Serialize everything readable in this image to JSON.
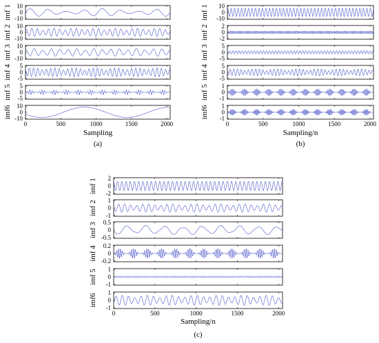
{
  "colors": {
    "signal": "#4a55c8",
    "frame": "#000000"
  },
  "chart_data": [
    {
      "type": "line",
      "panel_label": "(a)",
      "xlabel": "Sampling",
      "xlim": [
        0,
        2048
      ],
      "xticks": [
        0,
        500,
        1000,
        1500,
        2000
      ],
      "panels": [
        {
          "name": "imf 1",
          "ylim": [
            -10,
            10
          ],
          "yticks": [
            "10",
            "0",
            "-10"
          ],
          "wave": {
            "cycles": 8,
            "amp": 0.55,
            "mod": "slow"
          }
        },
        {
          "name": "imf 2",
          "ylim": [
            -10,
            10
          ],
          "yticks": [
            "10",
            "0",
            "-10"
          ],
          "wave": {
            "cycles": 26,
            "amp": 0.6,
            "mod": "beat"
          }
        },
        {
          "name": "imf 3",
          "ylim": [
            -10,
            10
          ],
          "yticks": [
            "10",
            "0",
            "-10"
          ],
          "wave": {
            "cycles": 17,
            "amp": 0.55,
            "mod": "beat"
          }
        },
        {
          "name": "imf 4",
          "ylim": [
            -5,
            5
          ],
          "yticks": [
            "5",
            "0",
            "-5"
          ],
          "wave": {
            "cycles": 34,
            "amp": 0.65,
            "mod": "beat"
          }
        },
        {
          "name": "imf 5",
          "ylim": [
            -5,
            5
          ],
          "yticks": [
            "5",
            "0",
            "-5"
          ],
          "wave": {
            "cycles": 60,
            "amp": 0.35,
            "mod": "bursts"
          }
        },
        {
          "name": "imf6",
          "ylim": [
            -10,
            10
          ],
          "yticks": [
            "10",
            "0",
            "-10"
          ],
          "wave": {
            "cycles": 1.7,
            "amp": 0.75,
            "mod": "none"
          }
        }
      ]
    },
    {
      "type": "line",
      "panel_label": "(b)",
      "xlabel": "Sampling/n",
      "xlim": [
        0,
        2048
      ],
      "xticks": [
        0,
        500,
        1000,
        1500,
        2000
      ],
      "panels": [
        {
          "name": "imf 1",
          "ylim": [
            -10,
            10
          ],
          "yticks": [
            "10",
            "0",
            "-10"
          ],
          "wave": {
            "cycles": 42,
            "amp": 0.6,
            "mod": "none"
          }
        },
        {
          "name": "imf 2",
          "ylim": [
            -2,
            2
          ],
          "yticks": [
            "2",
            "0",
            "-2"
          ],
          "wave": {
            "cycles": 95,
            "amp": 0.2,
            "mod": "dense"
          }
        },
        {
          "name": "imf 3",
          "ylim": [
            -5,
            5
          ],
          "yticks": [
            "5",
            "0",
            "-5"
          ],
          "wave": {
            "cycles": 48,
            "amp": 0.22,
            "mod": "none"
          }
        },
        {
          "name": "imf 4",
          "ylim": [
            -5,
            5
          ],
          "yticks": [
            "5",
            "0",
            "-5"
          ],
          "wave": {
            "cycles": 40,
            "amp": 0.5,
            "mod": "beat"
          }
        },
        {
          "name": "imf 5",
          "ylim": [
            -1,
            1
          ],
          "yticks": [
            "1",
            "0",
            "-1"
          ],
          "wave": {
            "cycles": 100,
            "amp": 0.5,
            "mod": "bursts"
          }
        },
        {
          "name": "imf6",
          "ylim": [
            -1,
            1
          ],
          "yticks": [
            "1",
            "0",
            "-1"
          ],
          "wave": {
            "cycles": 110,
            "amp": 0.45,
            "mod": "bursts"
          }
        }
      ]
    },
    {
      "type": "line",
      "panel_label": "(c)",
      "xlabel": "Sampling/n",
      "xlim": [
        0,
        2048
      ],
      "xticks": [
        0,
        500,
        1000,
        1500,
        2000
      ],
      "panels": [
        {
          "name": "imf 1",
          "ylim": [
            -2,
            2
          ],
          "yticks": [
            "2",
            "0",
            "-2"
          ],
          "wave": {
            "cycles": 40,
            "amp": 0.55,
            "mod": "none"
          }
        },
        {
          "name": "imf 2",
          "ylim": [
            -1,
            1
          ],
          "yticks": [
            "1",
            "0",
            "-1"
          ],
          "wave": {
            "cycles": 28,
            "amp": 0.5,
            "mod": "beat"
          }
        },
        {
          "name": "imf 3",
          "ylim": [
            -0.5,
            0.5
          ],
          "yticks": [
            "0.5",
            "0",
            "-0.5"
          ],
          "wave": {
            "cycles": 9,
            "amp": 0.55,
            "mod": "beat"
          }
        },
        {
          "name": "imf 4",
          "ylim": [
            -0.2,
            0.2
          ],
          "yticks": [
            "0.2",
            "0",
            "-0.2"
          ],
          "wave": {
            "cycles": 90,
            "amp": 0.6,
            "mod": "bursts"
          }
        },
        {
          "name": "imf 5",
          "ylim": [
            -1,
            1
          ],
          "yticks": [
            "1",
            "0",
            "-1"
          ],
          "wave": {
            "cycles": 70,
            "amp": 0.1,
            "mod": "dense"
          }
        },
        {
          "name": "imf6",
          "ylim": [
            -1,
            1
          ],
          "yticks": [
            "1",
            "0",
            "-1"
          ],
          "wave": {
            "cycles": 27,
            "amp": 0.6,
            "mod": "beat"
          }
        }
      ]
    }
  ]
}
